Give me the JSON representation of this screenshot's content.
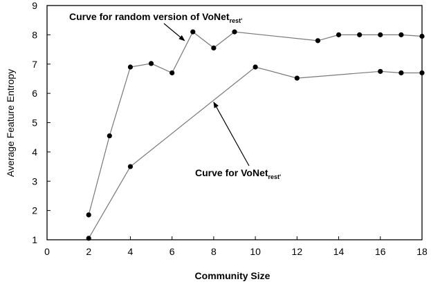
{
  "chart_data": {
    "type": "line",
    "title": "",
    "xlabel": "Community Size",
    "ylabel": "Average Feature Entropy",
    "xlim": [
      0,
      18
    ],
    "ylim": [
      1,
      9
    ],
    "xticks": [
      0,
      2,
      4,
      6,
      8,
      10,
      12,
      14,
      16,
      18
    ],
    "yticks": [
      1,
      2,
      3,
      4,
      5,
      6,
      7,
      8,
      9
    ],
    "grid": false,
    "legend": "none",
    "line_color": "#777777",
    "marker_color": "#000000",
    "series": [
      {
        "x": [
          2,
          3,
          4,
          5,
          6,
          7,
          8,
          9,
          13,
          14,
          15,
          16,
          17,
          18
        ],
        "y": [
          1.85,
          4.55,
          6.9,
          7.02,
          6.7,
          8.1,
          7.55,
          8.1,
          7.8,
          8.0,
          8.0,
          8.0,
          8.0,
          7.95
        ]
      },
      {
        "x": [
          2,
          4,
          10,
          12,
          16,
          17,
          18
        ],
        "y": [
          1.05,
          3.5,
          6.9,
          6.52,
          6.75,
          6.7,
          6.7
        ]
      }
    ],
    "annotations": [
      {
        "text_main": "Curve for random version of VoNet",
        "text_sub": "rest'",
        "arrow_to": [
          6.6,
          7.8
        ]
      },
      {
        "text_main": "Curve for VoNet",
        "text_sub": "rest'",
        "arrow_to": [
          8.0,
          5.7
        ]
      }
    ]
  }
}
